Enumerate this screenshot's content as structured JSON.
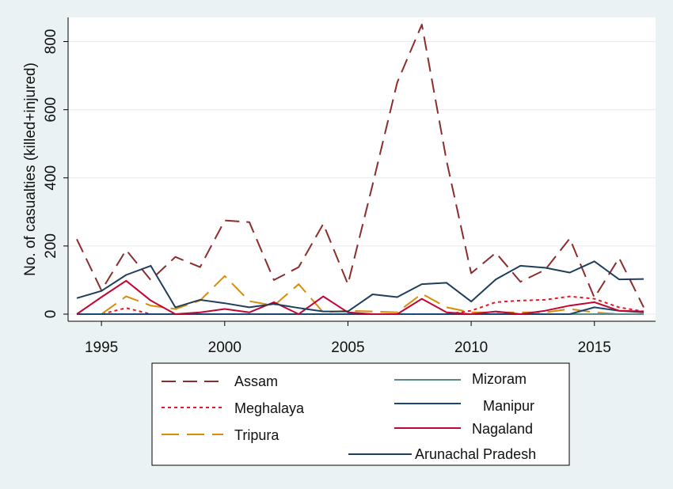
{
  "chart_data": {
    "type": "line",
    "title": "",
    "xlabel": "",
    "ylabel": "No. of casualties (killed+injured)",
    "xlim": [
      1994,
      2017
    ],
    "ylim": [
      0,
      850
    ],
    "xticks": [
      1995,
      2000,
      2005,
      2010,
      2015
    ],
    "yticks": [
      0,
      200,
      400,
      600,
      800
    ],
    "grid": "horizontal",
    "legend_position": "bottom",
    "x": [
      1994,
      1995,
      1996,
      1997,
      1998,
      1999,
      2000,
      2001,
      2002,
      2003,
      2004,
      2005,
      2006,
      2007,
      2008,
      2009,
      2010,
      2011,
      2012,
      2013,
      2014,
      2015,
      2016,
      2017
    ],
    "series": [
      {
        "name": "Assam",
        "color": "#8c2d2d",
        "dash": "dashed",
        "values": [
          220,
          70,
          188,
          100,
          168,
          138,
          275,
          270,
          100,
          138,
          265,
          88,
          380,
          680,
          850,
          450,
          120,
          180,
          95,
          130,
          222,
          48,
          165,
          20
        ]
      },
      {
        "name": "Meghalaya",
        "color": "#e8161e",
        "dash": "dotted",
        "values": [
          0,
          0,
          18,
          0,
          0,
          0,
          0,
          0,
          0,
          0,
          0,
          0,
          0,
          0,
          0,
          0,
          10,
          35,
          40,
          42,
          52,
          45,
          20,
          8
        ]
      },
      {
        "name": "Tripura",
        "color": "#d98c0a",
        "dash": "longdash",
        "values": [
          0,
          0,
          52,
          25,
          15,
          40,
          112,
          38,
          25,
          88,
          5,
          10,
          8,
          5,
          60,
          20,
          5,
          5,
          5,
          5,
          15,
          5,
          0,
          0
        ]
      },
      {
        "name": "Mizoram",
        "color": "#5a8a85",
        "dash": "solid",
        "values": [
          0,
          0,
          0,
          0,
          0,
          0,
          0,
          0,
          0,
          0,
          0,
          0,
          0,
          0,
          0,
          0,
          0,
          0,
          0,
          0,
          0,
          0,
          0,
          0
        ]
      },
      {
        "name": "Manipur",
        "color": "#1a476f",
        "dash": "solid",
        "values": [
          0,
          0,
          0,
          0,
          0,
          0,
          0,
          0,
          0,
          0,
          0,
          0,
          0,
          0,
          0,
          0,
          0,
          0,
          0,
          0,
          0,
          20,
          10,
          5
        ]
      },
      {
        "name": "Nagaland",
        "color": "#c10534",
        "dash": "solid",
        "values": [
          0,
          50,
          98,
          40,
          0,
          5,
          15,
          5,
          35,
          0,
          52,
          5,
          0,
          0,
          45,
          5,
          0,
          8,
          0,
          10,
          25,
          35,
          10,
          8
        ]
      },
      {
        "name": "Arunachal Pradesh",
        "color": "#1f3e5e",
        "dash": "solid",
        "values": [
          47,
          68,
          115,
          142,
          20,
          42,
          32,
          20,
          30,
          18,
          8,
          8,
          58,
          50,
          88,
          92,
          37,
          102,
          142,
          136,
          122,
          155,
          102,
          103
        ]
      }
    ]
  }
}
